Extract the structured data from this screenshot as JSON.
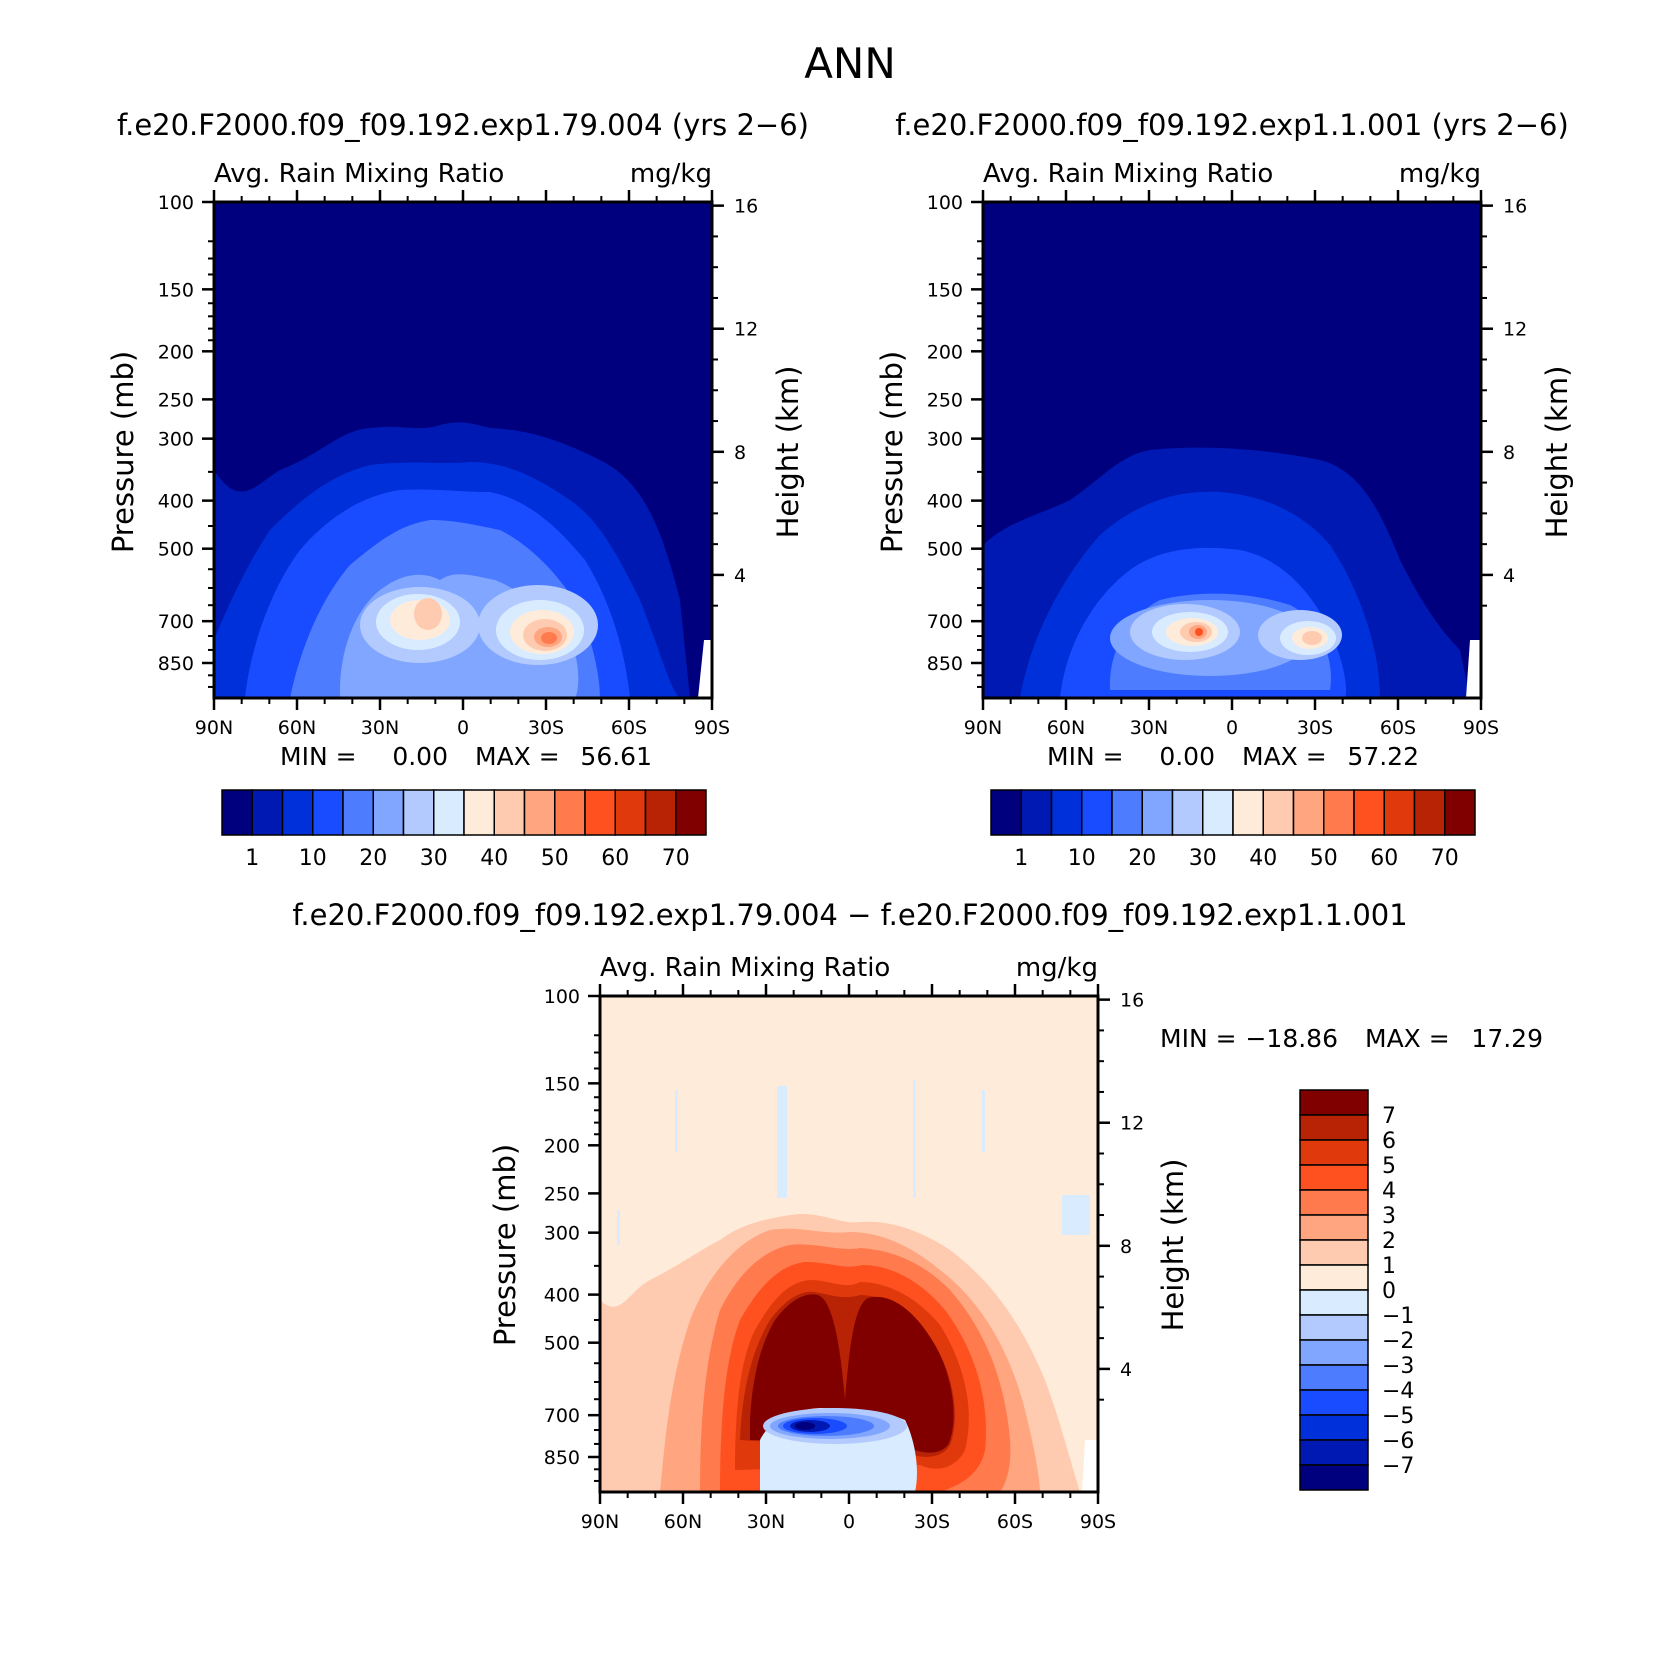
{
  "page_title": "ANN",
  "chart_data": [
    {
      "type": "heatmap",
      "subtype": "latitude-pressure contour",
      "title": "f.e20.F2000.f09_f09.192.exp1.79.004 (yrs 2−6)",
      "left_label": "Avg. Rain Mixing Ratio",
      "right_label": "mg/kg",
      "ylabel": "Pressure (mb)",
      "y2label": "Height (km)",
      "xticks": [
        "90N",
        "60N",
        "30N",
        "0",
        "30S",
        "60S",
        "90S"
      ],
      "xvalues": [
        90,
        60,
        30,
        0,
        -30,
        -60,
        -90
      ],
      "xlim": [
        90,
        -90
      ],
      "yticks": [
        100,
        150,
        200,
        250,
        300,
        400,
        500,
        700,
        850
      ],
      "ylim": [
        100,
        1000
      ],
      "yscale": "log",
      "y2ticks": [
        16,
        12,
        8,
        4
      ],
      "min_text": "MIN =",
      "min_value": "0.00",
      "max_text": "MAX =",
      "max_value": "56.61",
      "colorbar": {
        "orientation": "horizontal",
        "labels": [
          "1",
          "10",
          "20",
          "30",
          "40",
          "50",
          "60",
          "70"
        ],
        "colors": [
          "#00007f",
          "#0019b3",
          "#0030d9",
          "#1a4cff",
          "#4d7cff",
          "#80a6ff",
          "#b3caff",
          "#d9ecff",
          "#ffebd9",
          "#ffcbb0",
          "#ffa580",
          "#ff7a4d",
          "#ff5020",
          "#e03a0c",
          "#b82205",
          "#800000"
        ]
      },
      "features": {
        "background": "#00007f",
        "peaks": [
          {
            "lat": 17,
            "pressure": 650,
            "value": 45
          },
          {
            "lat": -30,
            "pressure": 700,
            "value": 56.61
          }
        ]
      }
    },
    {
      "type": "heatmap",
      "subtype": "latitude-pressure contour",
      "title": "f.e20.F2000.f09_f09.192.exp1.1.001 (yrs 2−6)",
      "left_label": "Avg. Rain Mixing Ratio",
      "right_label": "mg/kg",
      "ylabel": "Pressure (mb)",
      "y2label": "Height (km)",
      "xticks": [
        "90N",
        "60N",
        "30N",
        "0",
        "30S",
        "60S",
        "90S"
      ],
      "xvalues": [
        90,
        60,
        30,
        0,
        -30,
        -60,
        -90
      ],
      "xlim": [
        90,
        -90
      ],
      "yticks": [
        100,
        150,
        200,
        250,
        300,
        400,
        500,
        700,
        850
      ],
      "ylim": [
        100,
        1000
      ],
      "yscale": "log",
      "y2ticks": [
        16,
        12,
        8,
        4
      ],
      "min_text": "MIN =",
      "min_value": "0.00",
      "max_text": "MAX =",
      "max_value": "57.22",
      "colorbar": {
        "orientation": "horizontal",
        "labels": [
          "1",
          "10",
          "20",
          "30",
          "40",
          "50",
          "60",
          "70"
        ],
        "colors": [
          "#00007f",
          "#0019b3",
          "#0030d9",
          "#1a4cff",
          "#4d7cff",
          "#80a6ff",
          "#b3caff",
          "#d9ecff",
          "#ffebd9",
          "#ffcbb0",
          "#ffa580",
          "#ff7a4d",
          "#ff5020",
          "#e03a0c",
          "#b82205",
          "#800000"
        ]
      },
      "features": {
        "background": "#00007f",
        "peaks": [
          {
            "lat": 12,
            "pressure": 690,
            "value": 57.22
          },
          {
            "lat": -30,
            "pressure": 700,
            "value": 40
          }
        ]
      }
    },
    {
      "type": "heatmap",
      "subtype": "latitude-pressure difference contour",
      "title": "f.e20.F2000.f09_f09.192.exp1.79.004 − f.e20.F2000.f09_f09.192.exp1.1.001",
      "left_label": "Avg. Rain Mixing Ratio",
      "right_label": "mg/kg",
      "ylabel": "Pressure (mb)",
      "y2label": "Height (km)",
      "xticks": [
        "90N",
        "60N",
        "30N",
        "0",
        "30S",
        "60S",
        "90S"
      ],
      "xvalues": [
        90,
        60,
        30,
        0,
        -30,
        -60,
        -90
      ],
      "xlim": [
        90,
        -90
      ],
      "yticks": [
        100,
        150,
        200,
        250,
        300,
        400,
        500,
        700,
        850
      ],
      "ylim": [
        100,
        1000
      ],
      "yscale": "log",
      "y2ticks": [
        16,
        12,
        8,
        4
      ],
      "min_text": "MIN =",
      "min_value": "−18.86",
      "max_text": "MAX =",
      "max_value": "17.29",
      "colorbar": {
        "orientation": "vertical",
        "labels": [
          "7",
          "6",
          "5",
          "4",
          "3",
          "2",
          "1",
          "0",
          "−1",
          "−2",
          "−3",
          "−4",
          "−5",
          "−6",
          "−7"
        ],
        "colors": [
          "#800000",
          "#b82205",
          "#e03a0c",
          "#ff5020",
          "#ff7a4d",
          "#ffa580",
          "#ffcbb0",
          "#ffebd9",
          "#d9ecff",
          "#b3caff",
          "#80a6ff",
          "#4d7cff",
          "#1a4cff",
          "#0030d9",
          "#0019b3",
          "#00007f"
        ]
      },
      "features": {
        "background": "#ffebd9",
        "positive_region": {
          "lat_range": [
            30,
            -50
          ],
          "pressure_range": [
            350,
            750
          ],
          "value": 7
        },
        "negative_region": {
          "lat_range": [
            25,
            -20
          ],
          "pressure_range": [
            650,
            730
          ],
          "value": -7
        }
      }
    }
  ]
}
